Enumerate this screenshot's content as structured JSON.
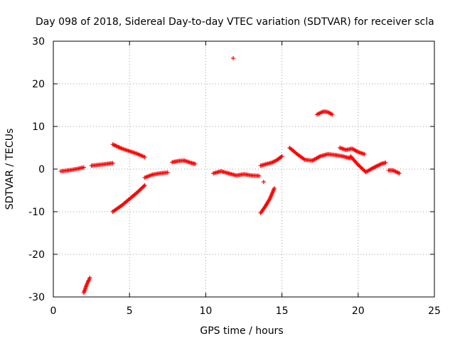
{
  "chart_data": {
    "type": "scatter",
    "title": "Day 098 of 2018, Sidereal Day-to-day VTEC variation (SDTVAR) for receiver scla",
    "xlabel": "GPS time / hours",
    "ylabel": "SDTVAR / TECUs",
    "xlim": [
      0,
      25
    ],
    "ylim": [
      -30,
      30
    ],
    "xticks": [
      0,
      5,
      10,
      15,
      20,
      25
    ],
    "yticks": [
      -30,
      -20,
      -10,
      0,
      10,
      20,
      30
    ],
    "xtick_labels": [
      "0",
      "5",
      "10",
      "15",
      "20",
      "25"
    ],
    "ytick_labels": [
      "-30",
      "-20",
      "-10",
      "0",
      "10",
      "20",
      "30"
    ],
    "grid": true,
    "marker": "+",
    "color": "#ff0000",
    "segments": [
      {
        "x": [
          0.5,
          1.0,
          1.5,
          2.0
        ],
        "y": [
          -0.5,
          -0.3,
          0.0,
          0.4
        ]
      },
      {
        "x": [
          2.5,
          3.0,
          3.5,
          3.9
        ],
        "y": [
          0.8,
          1.0,
          1.2,
          1.4
        ]
      },
      {
        "x": [
          3.9,
          4.5,
          5.0,
          5.5,
          6.0
        ],
        "y": [
          5.8,
          4.8,
          4.2,
          3.6,
          2.8
        ]
      },
      {
        "x": [
          2.0,
          2.2,
          2.4
        ],
        "y": [
          -29.0,
          -27.0,
          -25.5
        ]
      },
      {
        "x": [
          3.9,
          4.5,
          5.0,
          5.5,
          6.0
        ],
        "y": [
          -10.0,
          -8.5,
          -7.0,
          -5.5,
          -3.8
        ]
      },
      {
        "x": [
          6.0,
          6.5,
          7.0,
          7.5
        ],
        "y": [
          -2.0,
          -1.3,
          -1.0,
          -0.8
        ]
      },
      {
        "x": [
          7.8,
          8.2,
          8.6,
          9.0,
          9.3
        ],
        "y": [
          1.6,
          1.9,
          2.0,
          1.5,
          1.2
        ]
      },
      {
        "x": [
          10.5,
          11.0,
          11.5,
          12.0,
          12.5,
          13.0,
          13.5
        ],
        "y": [
          -1.0,
          -0.5,
          -1.0,
          -1.5,
          -1.2,
          -1.5,
          -1.6
        ]
      },
      {
        "x": [
          11.8
        ],
        "y": [
          26.0
        ]
      },
      {
        "x": [
          13.6,
          14.0,
          14.4,
          14.7,
          15.0
        ],
        "y": [
          0.8,
          1.2,
          1.6,
          2.2,
          3.0
        ]
      },
      {
        "x": [
          13.6,
          13.9,
          14.2,
          14.5
        ],
        "y": [
          -10.3,
          -8.8,
          -7.0,
          -4.5
        ]
      },
      {
        "x": [
          13.8
        ],
        "y": [
          -3.0
        ]
      },
      {
        "x": [
          15.5,
          16.0,
          16.5,
          17.0,
          17.5,
          18.0,
          18.5,
          19.0,
          19.5
        ],
        "y": [
          5.0,
          3.5,
          2.2,
          2.0,
          3.0,
          3.5,
          3.3,
          3.0,
          2.5
        ]
      },
      {
        "x": [
          17.3,
          17.7,
          18.0,
          18.3
        ],
        "y": [
          12.8,
          13.5,
          13.4,
          12.8
        ]
      },
      {
        "x": [
          18.8,
          19.2,
          19.6,
          20.0,
          20.4
        ],
        "y": [
          5.0,
          4.5,
          4.8,
          4.0,
          3.5
        ]
      },
      {
        "x": [
          19.5,
          20.0,
          20.5,
          21.0,
          21.5,
          21.8
        ],
        "y": [
          3.0,
          1.0,
          -0.7,
          0.3,
          1.2,
          1.5
        ]
      },
      {
        "x": [
          22.0,
          22.3,
          22.7
        ],
        "y": [
          -0.3,
          -0.3,
          -1.0
        ]
      }
    ]
  }
}
